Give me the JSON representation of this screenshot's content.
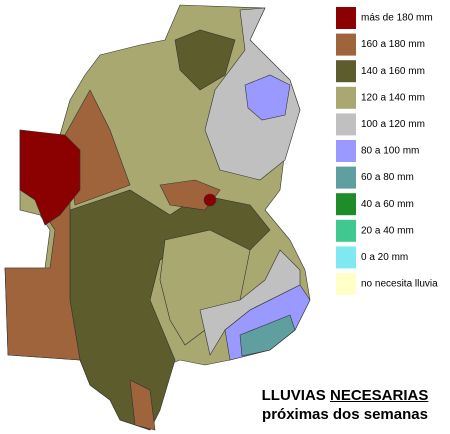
{
  "title": {
    "line1_part1": "LLUVIAS",
    "line1_part2": "NECESARIAS",
    "line2": "próximas dos semanas"
  },
  "legend": {
    "items": [
      {
        "label": "más de 180 mm",
        "color": "#8b0000"
      },
      {
        "label": "160 a 180 mm",
        "color": "#a0643c"
      },
      {
        "label": "140 a 160 mm",
        "color": "#5c5c2c"
      },
      {
        "label": "120 a 140 mm",
        "color": "#a8a870"
      },
      {
        "label": "100 a 120 mm",
        "color": "#c0c0c0"
      },
      {
        "label": "80 a 100 mm",
        "color": "#9999ff"
      },
      {
        "label": "60 a 80 mm",
        "color": "#5f9f9f"
      },
      {
        "label": "40 a 60 mm",
        "color": "#1e8c28"
      },
      {
        "label": "20 a 40 mm",
        "color": "#40c890"
      },
      {
        "label": "0 a 20 mm",
        "color": "#80e8f0"
      },
      {
        "label": "no necesita lluvia",
        "color": "#ffffc8"
      }
    ]
  }
}
